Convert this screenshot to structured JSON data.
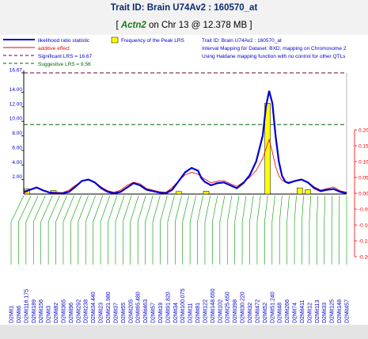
{
  "header": {
    "title": "Trait ID: Brain U74Av2 : 160570_at",
    "subtitle_prefix": "[ ",
    "gene": "Actn2",
    "subtitle_suffix": " on Chr 13 @ 12.378 MB ]"
  },
  "legend": {
    "lrs_label": "likelihood ratio statistic",
    "additive_label": "additive effect",
    "significant_label": "Significant LRS = 16.67",
    "suggestive_label": "Suggestive LRS = 9.56",
    "freq_label": "Frequency of the Peak LRS",
    "info_lines": [
      "Trait ID: Brain U74Av2 : 160570_at",
      "Interval Mapping for Dataset: BXD, mapping on Chromosome 2",
      "Using Haldane mapping function with no control for other QTLs"
    ]
  },
  "colors": {
    "lrs": "#0000cc",
    "additive": "#ee0000",
    "significant": "#660033",
    "suggestive": "#006600",
    "frequency": "#ffff00",
    "marker_lines": "#009900",
    "marker_labels": "#0000cc"
  },
  "chart_data": {
    "type": "line",
    "title": "Interval Mapping for Dataset: BXD, mapping on Chromosome 2",
    "left_axis": {
      "ylim": [
        0,
        16.67
      ],
      "ticks": [
        "2.00",
        "4.00",
        "6.00",
        "8.00",
        "10.00",
        "12.00",
        "14.00",
        "16.67"
      ]
    },
    "right_axis": {
      "ylim": [
        -0.2,
        0.2
      ],
      "ticks": [
        "0.20",
        "0.15",
        "0.10",
        "0.05",
        "0.00",
        "-0.05",
        "-0.10",
        "-0.15",
        "-0.20"
      ]
    },
    "significant_lrs": 16.67,
    "suggestive_lrs": 9.56,
    "lrs_series": {
      "name": "likelihood ratio statistic",
      "x": [
        0,
        2,
        4,
        6,
        8,
        10,
        12,
        14,
        16,
        18,
        20,
        22,
        24,
        26,
        28,
        30,
        32,
        34,
        36,
        38,
        40,
        42,
        44,
        46,
        48,
        50,
        52,
        54,
        55,
        56,
        58,
        60,
        62,
        64,
        66,
        68,
        70,
        72,
        74,
        75,
        76,
        77,
        78,
        79,
        80,
        81,
        82,
        84,
        86,
        88,
        90,
        92,
        94,
        96,
        98,
        100
      ],
      "y": [
        0.3,
        0.6,
        0.9,
        0.5,
        0.2,
        0.1,
        0.1,
        0.3,
        1.0,
        1.8,
        2.0,
        1.6,
        0.8,
        0.3,
        0.1,
        0.3,
        0.9,
        1.5,
        1.2,
        0.6,
        0.4,
        0.2,
        0.1,
        0.6,
        1.8,
        3.0,
        3.6,
        3.2,
        2.2,
        1.7,
        1.2,
        1.5,
        1.6,
        1.2,
        0.8,
        1.5,
        2.6,
        4.5,
        8.0,
        12.0,
        14.2,
        12.5,
        8.0,
        4.5,
        2.5,
        1.7,
        1.5,
        1.8,
        2.0,
        1.6,
        0.8,
        0.4,
        0.6,
        0.7,
        0.3,
        0.1
      ]
    },
    "additive_series": {
      "name": "additive effect",
      "x": [
        0,
        2,
        4,
        6,
        8,
        10,
        12,
        14,
        16,
        18,
        20,
        22,
        24,
        26,
        28,
        30,
        32,
        34,
        36,
        38,
        40,
        42,
        44,
        46,
        48,
        50,
        52,
        54,
        56,
        58,
        60,
        62,
        64,
        66,
        68,
        70,
        72,
        74,
        75,
        76,
        77,
        78,
        79,
        80,
        82,
        84,
        86,
        88,
        90,
        92,
        94,
        96,
        98,
        100
      ],
      "y": [
        0.0,
        0.01,
        0.018,
        0.01,
        0.004,
        0.003,
        0.002,
        0.01,
        0.025,
        0.038,
        0.042,
        0.035,
        0.02,
        0.008,
        0.003,
        0.01,
        0.025,
        0.035,
        0.03,
        0.015,
        0.01,
        0.005,
        0.003,
        0.018,
        0.04,
        0.058,
        0.066,
        0.06,
        0.045,
        0.033,
        0.038,
        0.04,
        0.03,
        0.022,
        0.035,
        0.05,
        0.072,
        0.11,
        0.14,
        0.17,
        0.13,
        0.085,
        0.055,
        0.04,
        0.035,
        0.04,
        0.043,
        0.035,
        0.02,
        0.01,
        0.015,
        0.02,
        0.008,
        0.003
      ]
    },
    "peak_frequency_bars": [
      {
        "x": 1.0,
        "height_lrs": 0.7
      },
      {
        "x": 9.2,
        "height_lrs": 0.5
      },
      {
        "x": 48.0,
        "height_lrs": 0.35
      },
      {
        "x": 56.5,
        "height_lrs": 0.4
      },
      {
        "x": 75.5,
        "height_lrs": 12.5
      },
      {
        "x": 85.5,
        "height_lrs": 0.85
      },
      {
        "x": 88.0,
        "height_lrs": 0.6
      }
    ],
    "markers": [
      "D2Mit1",
      "D2Mit6",
      "D2Mit116.175",
      "D2Mit189",
      "D2Mit156",
      "D2Mit3",
      "D2Mit82",
      "D2Mit365",
      "D2Mit96",
      "D2Mit292",
      "D2Mit238",
      "D2Mit34.440",
      "D2Mit23",
      "D2Mit21.980",
      "D2Mit37",
      "D2Mit55",
      "D2Mit205",
      "D2Mit65.480",
      "D2Mit463",
      "D2Mit57",
      "D2Mit19",
      "D2Mit91.820",
      "D2Mit34",
      "D2Mit100.075",
      "D2Mit11",
      "D2Mit81",
      "D2Mit122",
      "D2Mit148.650",
      "D2Mit102",
      "D2Mit25.650",
      "D2Mit398",
      "D2Mit30.220",
      "D2Mit32",
      "D2Mit472",
      "D2Mit52",
      "D2Mit51.240",
      "D2Mit48",
      "D2Mit266",
      "D2Mit74",
      "D2Mit411",
      "D2Mit12",
      "D2Mit113",
      "D2Mit33",
      "D2Mit125",
      "D2Mit148",
      "D2Mit457"
    ]
  }
}
